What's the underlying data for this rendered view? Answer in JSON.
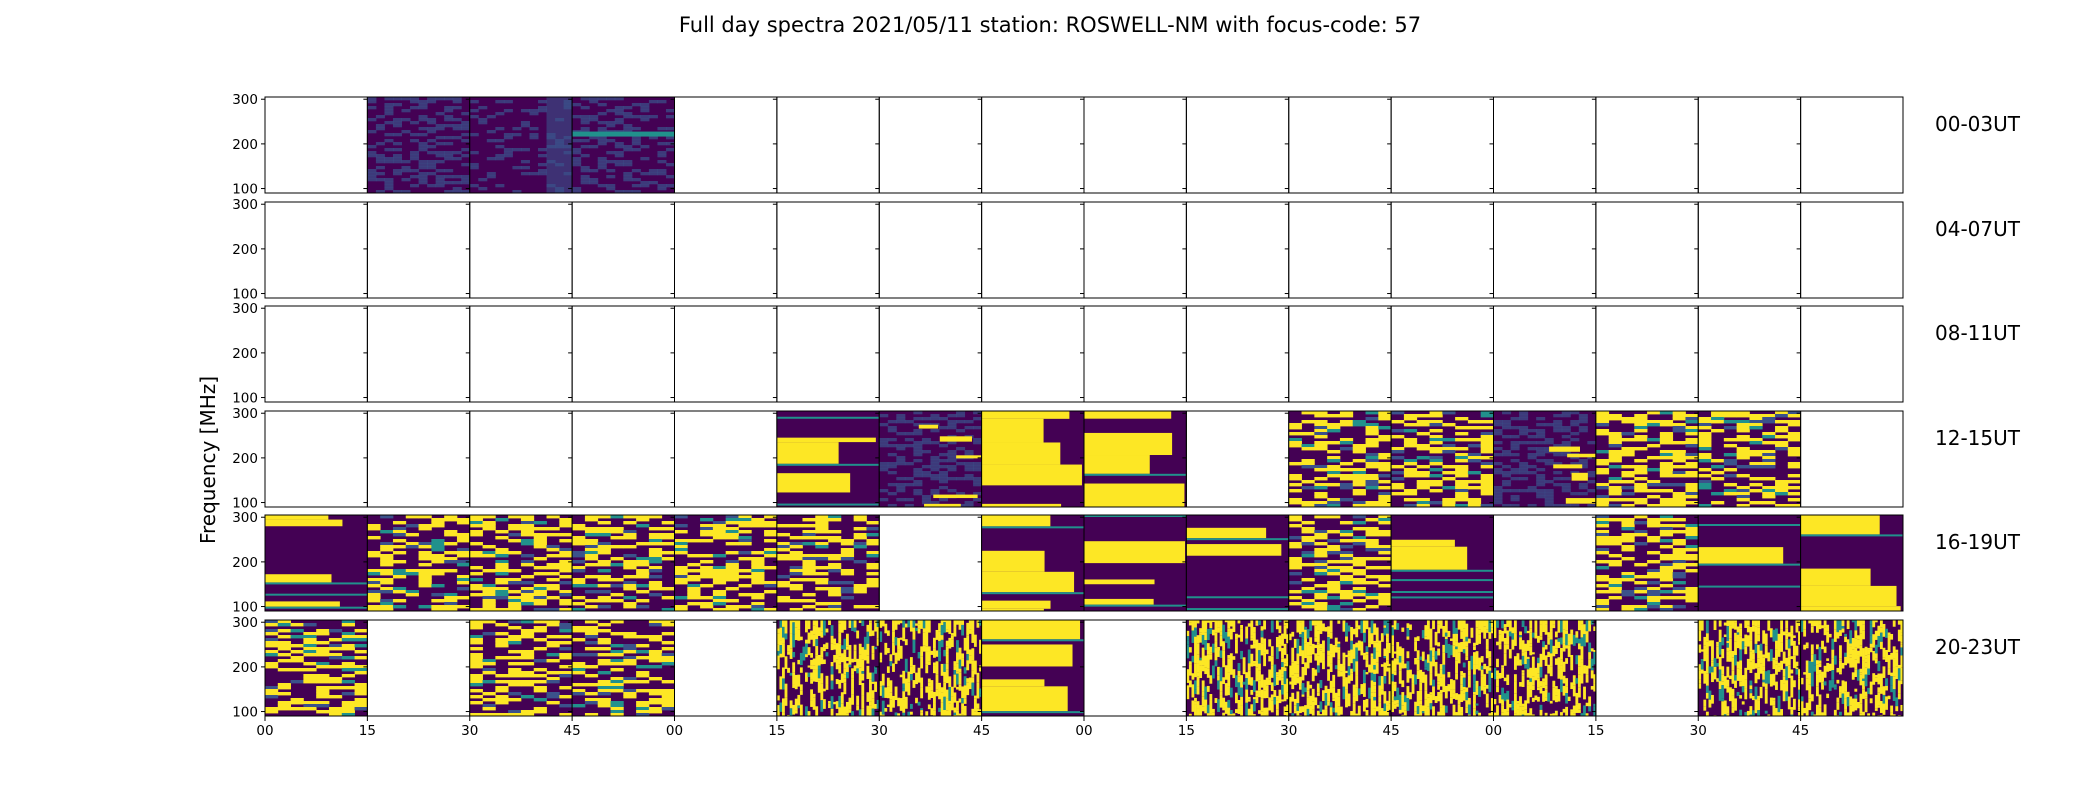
{
  "chart_data": {
    "type": "heatmap",
    "title": "Full day spectra 2021/05/11 station: ROSWELL-NM with focus-code: 57",
    "ylabel": "Frequency [MHz]",
    "xlabel": "",
    "ylim": [
      90,
      305
    ],
    "y_ticks": [
      "100",
      "200",
      "300"
    ],
    "x_ticks": [
      "00",
      "15",
      "30",
      "45",
      "00",
      "15",
      "30",
      "45",
      "00",
      "15",
      "30",
      "45",
      "00",
      "15",
      "30",
      "45"
    ],
    "rows": [
      {
        "label": "00-03UT",
        "panels": [
          "empty",
          "noise",
          "noise-dark",
          "noise-band",
          "empty",
          "empty",
          "empty",
          "empty",
          "empty",
          "empty",
          "empty",
          "empty",
          "empty",
          "empty",
          "empty",
          "empty"
        ]
      },
      {
        "label": "04-07UT",
        "panels": [
          "empty",
          "empty",
          "empty",
          "empty",
          "empty",
          "empty",
          "empty",
          "empty",
          "empty",
          "empty",
          "empty",
          "empty",
          "empty",
          "empty",
          "empty",
          "empty"
        ]
      },
      {
        "label": "08-11UT",
        "panels": [
          "empty",
          "empty",
          "empty",
          "empty",
          "empty",
          "empty",
          "empty",
          "empty",
          "empty",
          "empty",
          "empty",
          "empty",
          "empty",
          "empty",
          "empty",
          "empty"
        ]
      },
      {
        "label": "12-15UT",
        "panels": [
          "empty",
          "empty",
          "empty",
          "empty",
          "empty",
          "bands",
          "sparse",
          "bands",
          "bands",
          "empty",
          "bursts",
          "bursts",
          "sparse",
          "bursts",
          "bursts",
          "empty"
        ]
      },
      {
        "label": "16-19UT",
        "panels": [
          "bands",
          "bursts",
          "bursts",
          "bursts",
          "bursts",
          "bursts",
          "empty",
          "bands",
          "bands",
          "bands",
          "bursts",
          "bands",
          "empty",
          "bursts",
          "bands",
          "bands"
        ]
      },
      {
        "label": "20-23UT",
        "panels": [
          "bursts",
          "empty",
          "bursts",
          "bursts",
          "empty",
          "streaks",
          "streaks",
          "bands",
          "empty",
          "streaks",
          "streaks",
          "streaks",
          "streaks",
          "empty",
          "streaks",
          "streaks"
        ]
      }
    ],
    "colormap": [
      "#440154",
      "#3b528b",
      "#21918c",
      "#5ec962",
      "#fde725"
    ]
  }
}
